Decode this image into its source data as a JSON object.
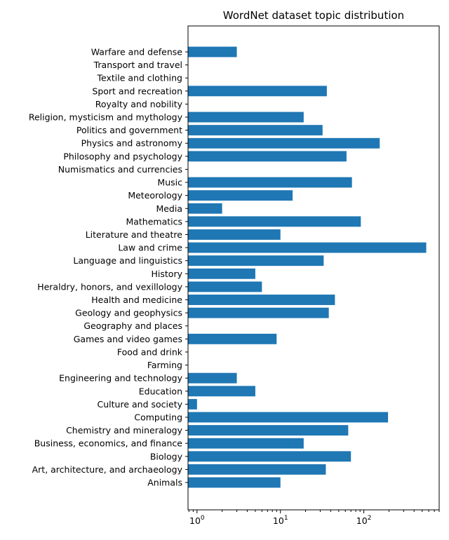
{
  "chart_data": {
    "type": "bar",
    "orientation": "horizontal",
    "title": "WordNet dataset topic distribution",
    "xscale": "log",
    "xlim": [
      0.78,
      800
    ],
    "xticks": [
      {
        "value": 1,
        "base": "10",
        "exp": "0"
      },
      {
        "value": 10,
        "base": "10",
        "exp": "1"
      },
      {
        "value": 100,
        "base": "10",
        "exp": "2"
      }
    ],
    "bar_color": "#1f77b4",
    "categories": [
      "Animals",
      "Art, architecture, and archaeology",
      "Biology",
      "Business, economics, and finance",
      "Chemistry and mineralogy",
      "Computing",
      "Culture and society",
      "Education",
      "Engineering and technology",
      "Farming",
      "Food and drink",
      "Games and video games",
      "Geography and places",
      "Geology and geophysics",
      "Health and medicine",
      "Heraldry, honors, and vexillology",
      "History",
      "Language and linguistics",
      "Law and crime",
      "Literature and theatre",
      "Mathematics",
      "Media",
      "Meteorology",
      "Music",
      "Numismatics and currencies",
      "Philosophy and psychology",
      "Physics and astronomy",
      "Politics and government",
      "Religion, mysticism and mythology",
      "Royalty and nobility",
      "Sport and recreation",
      "Textile and clothing",
      "Transport and travel",
      "Warfare and defense"
    ],
    "values": [
      10,
      35,
      70,
      19,
      65,
      195,
      1,
      5,
      3,
      0,
      0,
      9,
      0,
      38,
      45,
      6,
      5,
      33,
      560,
      10,
      92,
      2,
      14,
      72,
      0,
      62,
      155,
      32,
      19,
      0,
      36,
      0,
      0,
      3
    ]
  }
}
